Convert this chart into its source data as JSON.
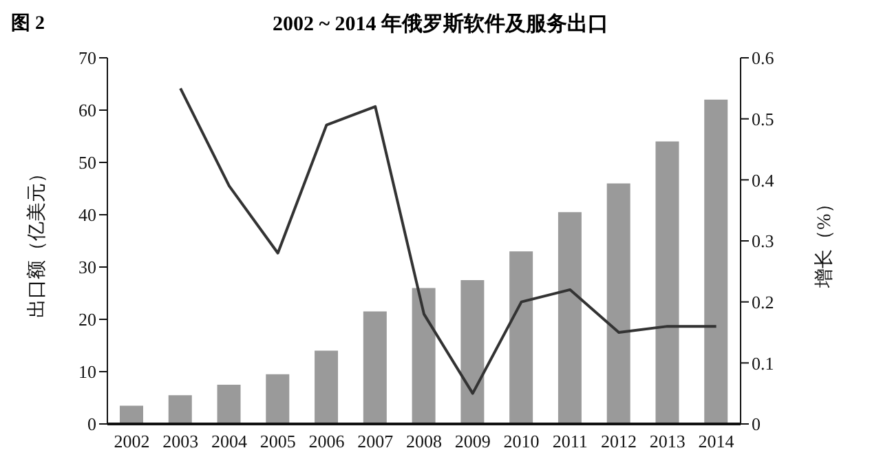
{
  "chart_data": {
    "type": "bar",
    "title": "2002 ~ 2014 年俄罗斯软件及服务出口",
    "annotations": [
      "图 2"
    ],
    "ylabel": "出口额（亿美元）",
    "y2label": "增长（%）",
    "categories": [
      "2002",
      "2003",
      "2004",
      "2005",
      "2006",
      "2007",
      "2008",
      "2009",
      "2010",
      "2011",
      "2012",
      "2013",
      "2014"
    ],
    "series": [
      {
        "color": "#9a9a9a",
        "values": [
          3.5,
          5.5,
          7.5,
          9.5,
          14,
          21.5,
          26,
          27.5,
          33,
          40.5,
          46,
          54,
          62
        ]
      },
      {
        "type": "line",
        "axis": "y2",
        "color": "#333333",
        "values": [
          null,
          0.55,
          0.39,
          0.28,
          0.49,
          0.52,
          0.18,
          0.05,
          0.2,
          0.22,
          0.15,
          0.16,
          0.16
        ]
      }
    ],
    "ylim": [
      0,
      70
    ],
    "yticks": [
      0,
      10,
      20,
      30,
      40,
      50,
      60,
      70
    ],
    "y2lim": [
      0,
      0.6
    ],
    "y2ticks": [
      0,
      0.1,
      0.2,
      0.3,
      0.4,
      0.5,
      0.6
    ],
    "grid": false,
    "legend": false,
    "marker": "none",
    "line_style": "solid"
  }
}
